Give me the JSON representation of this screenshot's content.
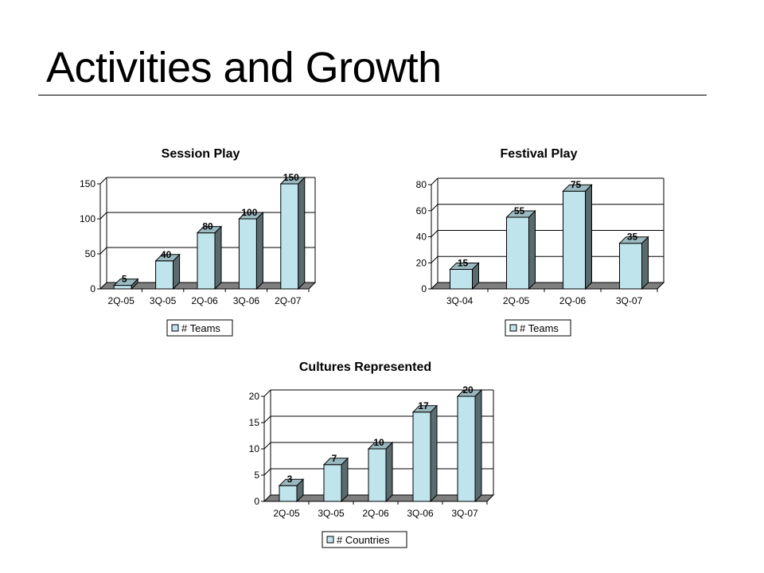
{
  "slide": {
    "title": "Activities and Growth"
  },
  "colors": {
    "bar_front": "#bfe4ec",
    "bar_side": "#5a6b6e",
    "bar_top": "#9ab8bf",
    "floor": "#7f7f7f",
    "grid": "#000000"
  },
  "chart_data": [
    {
      "id": "session",
      "type": "bar",
      "title": "Session Play",
      "categories": [
        "2Q-05",
        "3Q-05",
        "2Q-06",
        "3Q-06",
        "2Q-07"
      ],
      "series": [
        {
          "name": "# Teams",
          "values": [
            5,
            40,
            80,
            100,
            150
          ]
        }
      ],
      "data_labels": [
        "5",
        "40",
        "80",
        "100",
        "150"
      ],
      "yticks": [
        "0",
        "50",
        "100",
        "150"
      ],
      "ylim": [
        0,
        150
      ],
      "grid": true,
      "legend": "bottom",
      "style": "3d-column"
    },
    {
      "id": "festival",
      "type": "bar",
      "title": "Festival Play",
      "categories": [
        "3Q-04",
        "2Q-05",
        "2Q-06",
        "3Q-07"
      ],
      "series": [
        {
          "name": "# Teams",
          "values": [
            15,
            55,
            75,
            35
          ]
        }
      ],
      "data_labels": [
        "15",
        "55",
        "75",
        "35"
      ],
      "yticks": [
        "0",
        "20",
        "40",
        "60",
        "80"
      ],
      "ylim": [
        0,
        80
      ],
      "grid": true,
      "legend": "bottom",
      "style": "3d-column"
    },
    {
      "id": "cultures",
      "type": "bar",
      "title": "Cultures Represented",
      "categories": [
        "2Q-05",
        "3Q-05",
        "2Q-06",
        "3Q-06",
        "3Q-07"
      ],
      "series": [
        {
          "name": "# Countries",
          "values": [
            3,
            7,
            10,
            17,
            20
          ]
        }
      ],
      "data_labels": [
        "3",
        "7",
        "10",
        "17",
        "20"
      ],
      "yticks": [
        "0",
        "5",
        "10",
        "15",
        "20"
      ],
      "ylim": [
        0,
        20
      ],
      "grid": true,
      "legend": "bottom",
      "style": "3d-column"
    }
  ]
}
